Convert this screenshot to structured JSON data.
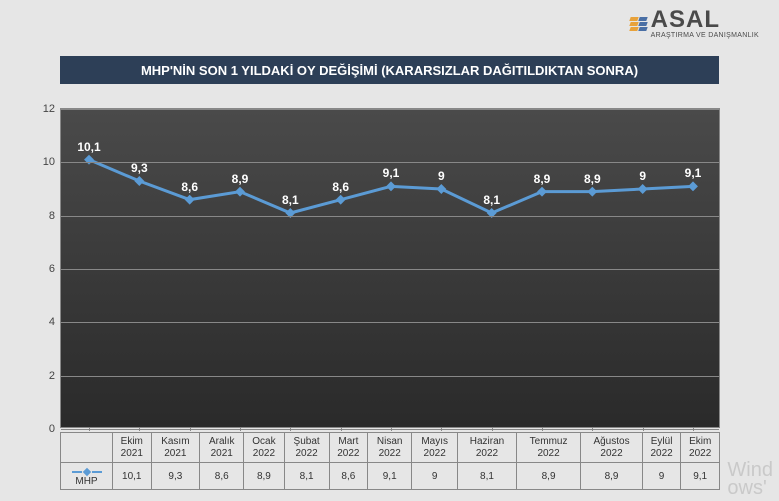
{
  "logo": {
    "name": "ASAL",
    "sub": "ARAŞTIRMA VE DANIŞMANLIK",
    "stripe_colors": [
      "#e8a23a",
      "#4a6fa5"
    ]
  },
  "title": "MHP'NİN SON 1 YILDAKİ OY DEĞİŞİMİ  (KARARSIZLAR DAĞITILDIKTAN SONRA)",
  "chart": {
    "type": "line",
    "series_name": "MHP",
    "categories": [
      "Ekim 2021",
      "Kasım 2021",
      "Aralık 2021",
      "Ocak 2022",
      "Şubat 2022",
      "Mart 2022",
      "Nisan 2022",
      "Mayıs 2022",
      "Haziran 2022",
      "Temmuz 2022",
      "Ağustos 2022",
      "Eylül 2022",
      "Ekim 2022"
    ],
    "category_lines": [
      [
        "Ekim",
        "2021"
      ],
      [
        "Kasım",
        "2021"
      ],
      [
        "Aralık",
        "2021"
      ],
      [
        "Ocak",
        "2022"
      ],
      [
        "Şubat",
        "2022"
      ],
      [
        "Mart",
        "2022"
      ],
      [
        "Nisan",
        "2022"
      ],
      [
        "Mayıs",
        "2022"
      ],
      [
        "Haziran",
        "2022"
      ],
      [
        "Temmuz",
        "2022"
      ],
      [
        "Ağustos",
        "2022"
      ],
      [
        "Eylül",
        "2022"
      ],
      [
        "Ekim",
        "2022"
      ]
    ],
    "values": [
      10.1,
      9.3,
      8.6,
      8.9,
      8.1,
      8.6,
      9.1,
      9.0,
      8.1,
      8.9,
      8.9,
      9.0,
      9.1
    ],
    "value_labels": [
      "10,1",
      "9,3",
      "8,6",
      "8,9",
      "8,1",
      "8,6",
      "9,1",
      "9",
      "8,1",
      "8,9",
      "8,9",
      "9",
      "9,1"
    ],
    "ylim": [
      0,
      12
    ],
    "ytick_step": 2,
    "yticks": [
      0,
      2,
      4,
      6,
      8,
      10,
      12
    ],
    "line_color": "#5b9bd5",
    "marker_color": "#5b9bd5",
    "line_width": 3,
    "marker_size": 7,
    "label_color": "#ffffff",
    "label_fontsize": 12,
    "plot_bg_top": "#4a4a4a",
    "plot_bg_bottom": "#2a2a2a",
    "grid_color": "#888888",
    "axis_font_color": "#444444",
    "axis_fontsize": 11,
    "page_bg": "#e6e6e6",
    "title_bg": "#2d3f57",
    "title_color": "#ffffff",
    "title_fontsize": 13
  },
  "watermark": "Wind\nows'"
}
